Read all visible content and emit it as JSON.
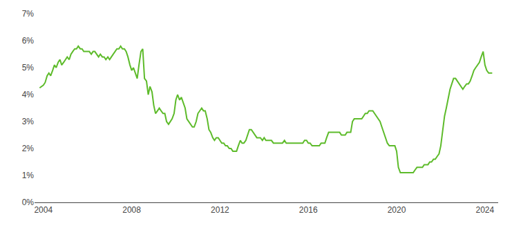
{
  "chart_data": {
    "type": "line",
    "color": "#5DBB2A",
    "grid": false,
    "xlim": [
      2003.6,
      2024.6
    ],
    "ylim": [
      0,
      0.07
    ],
    "xticks": [
      2004,
      2008,
      2012,
      2016,
      2020,
      2024
    ],
    "yticks": [
      {
        "value": 0.0,
        "label": "0%"
      },
      {
        "value": 0.01,
        "label": "1%"
      },
      {
        "value": 0.02,
        "label": "2%"
      },
      {
        "value": 0.03,
        "label": "3%"
      },
      {
        "value": 0.04,
        "label": "4%"
      },
      {
        "value": 0.05,
        "label": "5%"
      },
      {
        "value": 0.06,
        "label": "6%"
      },
      {
        "value": 0.07,
        "label": "7%"
      }
    ],
    "x": [
      2003.83,
      2004.0,
      2004.08,
      2004.17,
      2004.25,
      2004.33,
      2004.42,
      2004.5,
      2004.58,
      2004.67,
      2004.75,
      2004.83,
      2004.92,
      2005.0,
      2005.08,
      2005.17,
      2005.25,
      2005.33,
      2005.42,
      2005.5,
      2005.58,
      2005.67,
      2005.75,
      2005.83,
      2005.92,
      2006.0,
      2006.08,
      2006.17,
      2006.25,
      2006.33,
      2006.42,
      2006.5,
      2006.58,
      2006.67,
      2006.75,
      2006.83,
      2006.92,
      2007.0,
      2007.08,
      2007.17,
      2007.25,
      2007.33,
      2007.42,
      2007.5,
      2007.58,
      2007.67,
      2007.75,
      2007.83,
      2007.92,
      2008.0,
      2008.08,
      2008.17,
      2008.25,
      2008.33,
      2008.42,
      2008.5,
      2008.58,
      2008.67,
      2008.75,
      2008.83,
      2008.92,
      2009.0,
      2009.08,
      2009.17,
      2009.25,
      2009.33,
      2009.42,
      2009.5,
      2009.58,
      2009.67,
      2009.75,
      2009.83,
      2009.92,
      2010.0,
      2010.08,
      2010.17,
      2010.25,
      2010.33,
      2010.42,
      2010.5,
      2010.58,
      2010.67,
      2010.75,
      2010.83,
      2010.92,
      2011.0,
      2011.08,
      2011.17,
      2011.25,
      2011.33,
      2011.42,
      2011.5,
      2011.58,
      2011.67,
      2011.75,
      2011.83,
      2011.92,
      2012.0,
      2012.08,
      2012.17,
      2012.25,
      2012.33,
      2012.42,
      2012.5,
      2012.58,
      2012.67,
      2012.75,
      2012.83,
      2012.92,
      2013.0,
      2013.08,
      2013.17,
      2013.25,
      2013.33,
      2013.42,
      2013.5,
      2013.58,
      2013.67,
      2013.75,
      2013.83,
      2013.92,
      2014.0,
      2014.08,
      2014.17,
      2014.25,
      2014.33,
      2014.42,
      2014.5,
      2014.58,
      2014.67,
      2014.75,
      2014.83,
      2014.92,
      2015.0,
      2015.08,
      2015.17,
      2015.25,
      2015.33,
      2015.42,
      2015.5,
      2015.58,
      2015.67,
      2015.75,
      2015.83,
      2015.92,
      2016.0,
      2016.08,
      2016.17,
      2016.25,
      2016.33,
      2016.42,
      2016.5,
      2016.58,
      2016.67,
      2016.75,
      2016.83,
      2016.92,
      2017.0,
      2017.08,
      2017.17,
      2017.25,
      2017.33,
      2017.42,
      2017.5,
      2017.58,
      2017.67,
      2017.75,
      2017.83,
      2017.92,
      2018.0,
      2018.08,
      2018.17,
      2018.25,
      2018.33,
      2018.42,
      2018.5,
      2018.58,
      2018.67,
      2018.75,
      2018.83,
      2018.92,
      2019.0,
      2019.08,
      2019.17,
      2019.25,
      2019.33,
      2019.42,
      2019.5,
      2019.58,
      2019.67,
      2019.75,
      2019.83,
      2019.92,
      2020.0,
      2020.08,
      2020.17,
      2020.25,
      2020.33,
      2020.42,
      2020.5,
      2020.58,
      2020.67,
      2020.75,
      2020.83,
      2020.92,
      2021.0,
      2021.08,
      2021.17,
      2021.25,
      2021.33,
      2021.42,
      2021.5,
      2021.58,
      2021.67,
      2021.75,
      2021.83,
      2021.92,
      2022.0,
      2022.08,
      2022.17,
      2022.25,
      2022.33,
      2022.42,
      2022.5,
      2022.58,
      2022.67,
      2022.75,
      2022.83,
      2022.92,
      2023.0,
      2023.08,
      2023.17,
      2023.25,
      2023.33,
      2023.42,
      2023.5,
      2023.58,
      2023.67,
      2023.75,
      2023.83,
      2023.92,
      2024.0,
      2024.08,
      2024.17,
      2024.25,
      2024.33
    ],
    "values": [
      0.0425,
      0.0435,
      0.0445,
      0.047,
      0.048,
      0.047,
      0.049,
      0.051,
      0.05,
      0.052,
      0.053,
      0.051,
      0.052,
      0.053,
      0.054,
      0.053,
      0.055,
      0.056,
      0.057,
      0.057,
      0.058,
      0.057,
      0.057,
      0.056,
      0.056,
      0.056,
      0.056,
      0.055,
      0.056,
      0.056,
      0.055,
      0.054,
      0.055,
      0.054,
      0.054,
      0.053,
      0.054,
      0.053,
      0.054,
      0.055,
      0.056,
      0.057,
      0.057,
      0.058,
      0.057,
      0.057,
      0.056,
      0.054,
      0.051,
      0.049,
      0.05,
      0.048,
      0.046,
      0.051,
      0.056,
      0.057,
      0.046,
      0.045,
      0.04,
      0.043,
      0.041,
      0.036,
      0.033,
      0.034,
      0.035,
      0.034,
      0.033,
      0.033,
      0.03,
      0.029,
      0.03,
      0.031,
      0.033,
      0.038,
      0.04,
      0.038,
      0.039,
      0.037,
      0.035,
      0.031,
      0.03,
      0.029,
      0.028,
      0.028,
      0.03,
      0.033,
      0.034,
      0.035,
      0.034,
      0.034,
      0.031,
      0.027,
      0.026,
      0.024,
      0.023,
      0.024,
      0.024,
      0.023,
      0.022,
      0.022,
      0.021,
      0.021,
      0.02,
      0.02,
      0.019,
      0.019,
      0.019,
      0.021,
      0.023,
      0.022,
      0.022,
      0.023,
      0.025,
      0.027,
      0.027,
      0.026,
      0.025,
      0.024,
      0.024,
      0.024,
      0.023,
      0.024,
      0.023,
      0.023,
      0.023,
      0.023,
      0.022,
      0.022,
      0.022,
      0.022,
      0.022,
      0.022,
      0.023,
      0.022,
      0.022,
      0.022,
      0.022,
      0.022,
      0.022,
      0.022,
      0.022,
      0.022,
      0.022,
      0.023,
      0.023,
      0.022,
      0.022,
      0.021,
      0.021,
      0.021,
      0.021,
      0.021,
      0.022,
      0.022,
      0.022,
      0.024,
      0.026,
      0.026,
      0.026,
      0.026,
      0.026,
      0.026,
      0.026,
      0.025,
      0.025,
      0.025,
      0.026,
      0.026,
      0.026,
      0.03,
      0.031,
      0.031,
      0.031,
      0.031,
      0.031,
      0.032,
      0.033,
      0.033,
      0.034,
      0.034,
      0.034,
      0.033,
      0.032,
      0.031,
      0.03,
      0.028,
      0.026,
      0.024,
      0.022,
      0.021,
      0.021,
      0.021,
      0.021,
      0.019,
      0.013,
      0.011,
      0.011,
      0.011,
      0.011,
      0.011,
      0.011,
      0.011,
      0.011,
      0.012,
      0.013,
      0.013,
      0.013,
      0.013,
      0.014,
      0.014,
      0.014,
      0.015,
      0.015,
      0.016,
      0.016,
      0.017,
      0.018,
      0.021,
      0.027,
      0.032,
      0.035,
      0.038,
      0.042,
      0.044,
      0.046,
      0.046,
      0.045,
      0.044,
      0.043,
      0.042,
      0.043,
      0.044,
      0.044,
      0.045,
      0.047,
      0.049,
      0.05,
      0.051,
      0.052,
      0.054,
      0.056,
      0.051,
      0.049,
      0.048,
      0.048,
      0.048
    ]
  }
}
